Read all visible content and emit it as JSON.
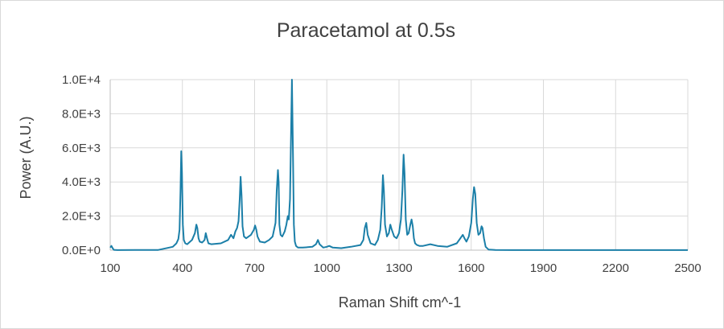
{
  "chart_data": {
    "type": "line",
    "title": "Paracetamol at 0.5s",
    "xlabel": "Raman Shift  cm^-1",
    "ylabel": "Power (A.U.)",
    "xlim": [
      100,
      2500
    ],
    "ylim": [
      0,
      10000
    ],
    "x_ticks": [
      100,
      400,
      700,
      1000,
      1300,
      1600,
      1900,
      2200,
      2500
    ],
    "x_tick_labels": [
      "100",
      "400",
      "700",
      "1000",
      "1300",
      "1600",
      "1900",
      "2200",
      "2500"
    ],
    "y_ticks": [
      0,
      2000,
      4000,
      6000,
      8000,
      10000
    ],
    "y_tick_labels": [
      "0.0E+0",
      "2.0E+3",
      "4.0E+3",
      "6.0E+3",
      "8.0E+3",
      "1.0E+4"
    ],
    "grid": true,
    "legend": "none",
    "series_color": "#1b7fa8",
    "series": [
      {
        "x": [
          100,
          105,
          110,
          115,
          130,
          200,
          300,
          360,
          375,
          383,
          388,
          392,
          395,
          398,
          402,
          406,
          412,
          420,
          440,
          452,
          458,
          462,
          467,
          472,
          482,
          492,
          497,
          502,
          508,
          520,
          560,
          590,
          602,
          612,
          620,
          627,
          633,
          638,
          642,
          646,
          650,
          656,
          665,
          685,
          697,
          702,
          707,
          712,
          722,
          742,
          760,
          775,
          787,
          792,
          797,
          800,
          803,
          808,
          815,
          825,
          832,
          838,
          842,
          847,
          851,
          855,
          859,
          863,
          867,
          872,
          880,
          900,
          940,
          955,
          963,
          970,
          985,
          1000,
          1010,
          1025,
          1060,
          1100,
          1140,
          1152,
          1158,
          1164,
          1170,
          1182,
          1200,
          1212,
          1222,
          1228,
          1233,
          1237,
          1242,
          1250,
          1258,
          1264,
          1270,
          1280,
          1290,
          1300,
          1308,
          1314,
          1319,
          1323,
          1328,
          1334,
          1340,
          1347,
          1352,
          1357,
          1362,
          1367,
          1375,
          1385,
          1400,
          1430,
          1460,
          1500,
          1540,
          1555,
          1565,
          1572,
          1580,
          1590,
          1600,
          1607,
          1612,
          1617,
          1623,
          1630,
          1637,
          1643,
          1647,
          1653,
          1660,
          1672,
          1700,
          1800,
          1900,
          2000,
          2100,
          2200,
          2300,
          2400,
          2500
        ],
        "y": [
          150,
          250,
          120,
          20,
          5,
          10,
          15,
          200,
          400,
          650,
          1200,
          3500,
          5800,
          4500,
          1500,
          600,
          400,
          350,
          600,
          1000,
          1500,
          1300,
          700,
          500,
          450,
          600,
          1000,
          700,
          400,
          350,
          400,
          600,
          900,
          700,
          1100,
          1300,
          1700,
          3000,
          4300,
          3200,
          1400,
          800,
          700,
          900,
          1200,
          1450,
          1200,
          800,
          500,
          450,
          600,
          800,
          1600,
          3500,
          4700,
          4000,
          1500,
          900,
          800,
          1100,
          1500,
          2000,
          1800,
          3000,
          6500,
          10000,
          6000,
          1500,
          500,
          250,
          150,
          150,
          200,
          350,
          600,
          350,
          150,
          200,
          250,
          150,
          120,
          200,
          300,
          600,
          1300,
          1600,
          900,
          400,
          300,
          600,
          1200,
          2500,
          4400,
          3500,
          1500,
          800,
          1000,
          1500,
          1200,
          800,
          700,
          1000,
          1800,
          3500,
          5600,
          4500,
          1800,
          900,
          1000,
          1500,
          1800,
          1400,
          700,
          400,
          300,
          250,
          250,
          350,
          250,
          200,
          400,
          700,
          900,
          700,
          500,
          800,
          1600,
          3000,
          3700,
          3300,
          1600,
          900,
          1000,
          1400,
          1300,
          700,
          200,
          40,
          10,
          5,
          5,
          5,
          3,
          3,
          3,
          3,
          3
        ]
      }
    ]
  }
}
